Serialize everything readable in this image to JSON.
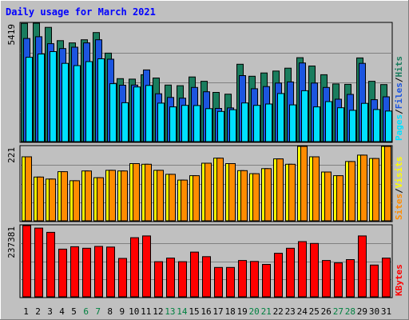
{
  "chart_data": {
    "type": "bar",
    "title": "Daily usage for March 2021",
    "categories": [
      "1",
      "2",
      "3",
      "4",
      "5",
      "6",
      "7",
      "8",
      "9",
      "10",
      "11",
      "12",
      "13",
      "14",
      "15",
      "16",
      "17",
      "18",
      "19",
      "20",
      "21",
      "22",
      "23",
      "24",
      "25",
      "26",
      "27",
      "28",
      "29",
      "30",
      "31"
    ],
    "weekend_days": [
      "6",
      "7",
      "13",
      "14",
      "20",
      "21",
      "27",
      "28"
    ],
    "panels": [
      {
        "id": "top",
        "max_label": "5419",
        "ylim": [
          0,
          5419
        ],
        "axis_labels": [
          "Pages",
          "Files",
          "Hits"
        ],
        "series": [
          {
            "name": "Hits",
            "color": "#1A7D5E",
            "values": [
              5410,
              5419,
              5230,
              4620,
              4520,
              4660,
              4990,
              4050,
              2880,
              2860,
              3060,
              2910,
              2590,
              2560,
              2960,
              2760,
              2250,
              2170,
              3540,
              2990,
              3140,
              3230,
              3360,
              3840,
              3460,
              3060,
              2640,
              2620,
              3830,
              2760,
              2610
            ]
          },
          {
            "name": "Files",
            "color": "#1C55E0",
            "values": [
              4720,
              4800,
              4480,
              4260,
              4320,
              4520,
              4660,
              3770,
              2580,
              2590,
              3280,
              2190,
              2020,
              1990,
              2480,
              2280,
              1520,
              1540,
              3020,
              2420,
              2520,
              2680,
              2730,
              3600,
              2680,
              2480,
              1940,
              2160,
              3580,
              1920,
              2050
            ]
          },
          {
            "name": "Pages",
            "color": "#00E0FF",
            "values": [
              3860,
              4010,
              4120,
              3580,
              3480,
              3660,
              3790,
              2650,
              1780,
              2500,
              2570,
              1760,
              1590,
              1660,
              1650,
              1510,
              1380,
              1460,
              1770,
              1660,
              1720,
              2200,
              1680,
              2330,
              1590,
              1830,
              1550,
              1430,
              1750,
              1470,
              1400
            ]
          }
        ]
      },
      {
        "id": "middle",
        "max_label": "221",
        "ylim": [
          0,
          221
        ],
        "axis_labels": [
          "Sites",
          "Visits"
        ],
        "series": [
          {
            "name": "Visits",
            "color": "#FFFF00",
            "values": [
              190,
              130,
              124,
              146,
              119,
              148,
              128,
              150,
              148,
              170,
              168,
              150,
              138,
              121,
              134,
              171,
              186,
              170,
              149,
              140,
              155,
              184,
              168,
              221,
              190,
              145,
              134,
              176,
              195,
              185,
              221
            ]
          },
          {
            "name": "Sites",
            "color": "#FF8C00",
            "values": [
              190,
              130,
              124,
              146,
              119,
              148,
              128,
              150,
              148,
              170,
              168,
              150,
              138,
              121,
              134,
              171,
              186,
              170,
              149,
              140,
              155,
              184,
              168,
              221,
              190,
              145,
              134,
              176,
              195,
              185,
              221
            ]
          }
        ]
      },
      {
        "id": "bottom",
        "max_label": "237381",
        "ylim": [
          0,
          237381
        ],
        "axis_labels": [
          "KBytes"
        ],
        "series": [
          {
            "name": "KBytes",
            "color": "#FF0000",
            "values": [
              237381,
              229000,
              215000,
              159000,
              167000,
              162000,
              168000,
              166000,
              128000,
              197000,
              203000,
              117000,
              129000,
              117000,
              149000,
              134000,
              98000,
              98000,
              121000,
              118000,
              108000,
              145000,
              162000,
              184000,
              178000,
              121000,
              113000,
              124000,
              203000,
              106000,
              129000
            ]
          }
        ]
      }
    ]
  },
  "colors": {
    "title": "#0000FF",
    "day_normal": "#000000",
    "day_weekend": "#008040",
    "panel_bg": "#C0C0C0",
    "gridline": "#808080"
  }
}
